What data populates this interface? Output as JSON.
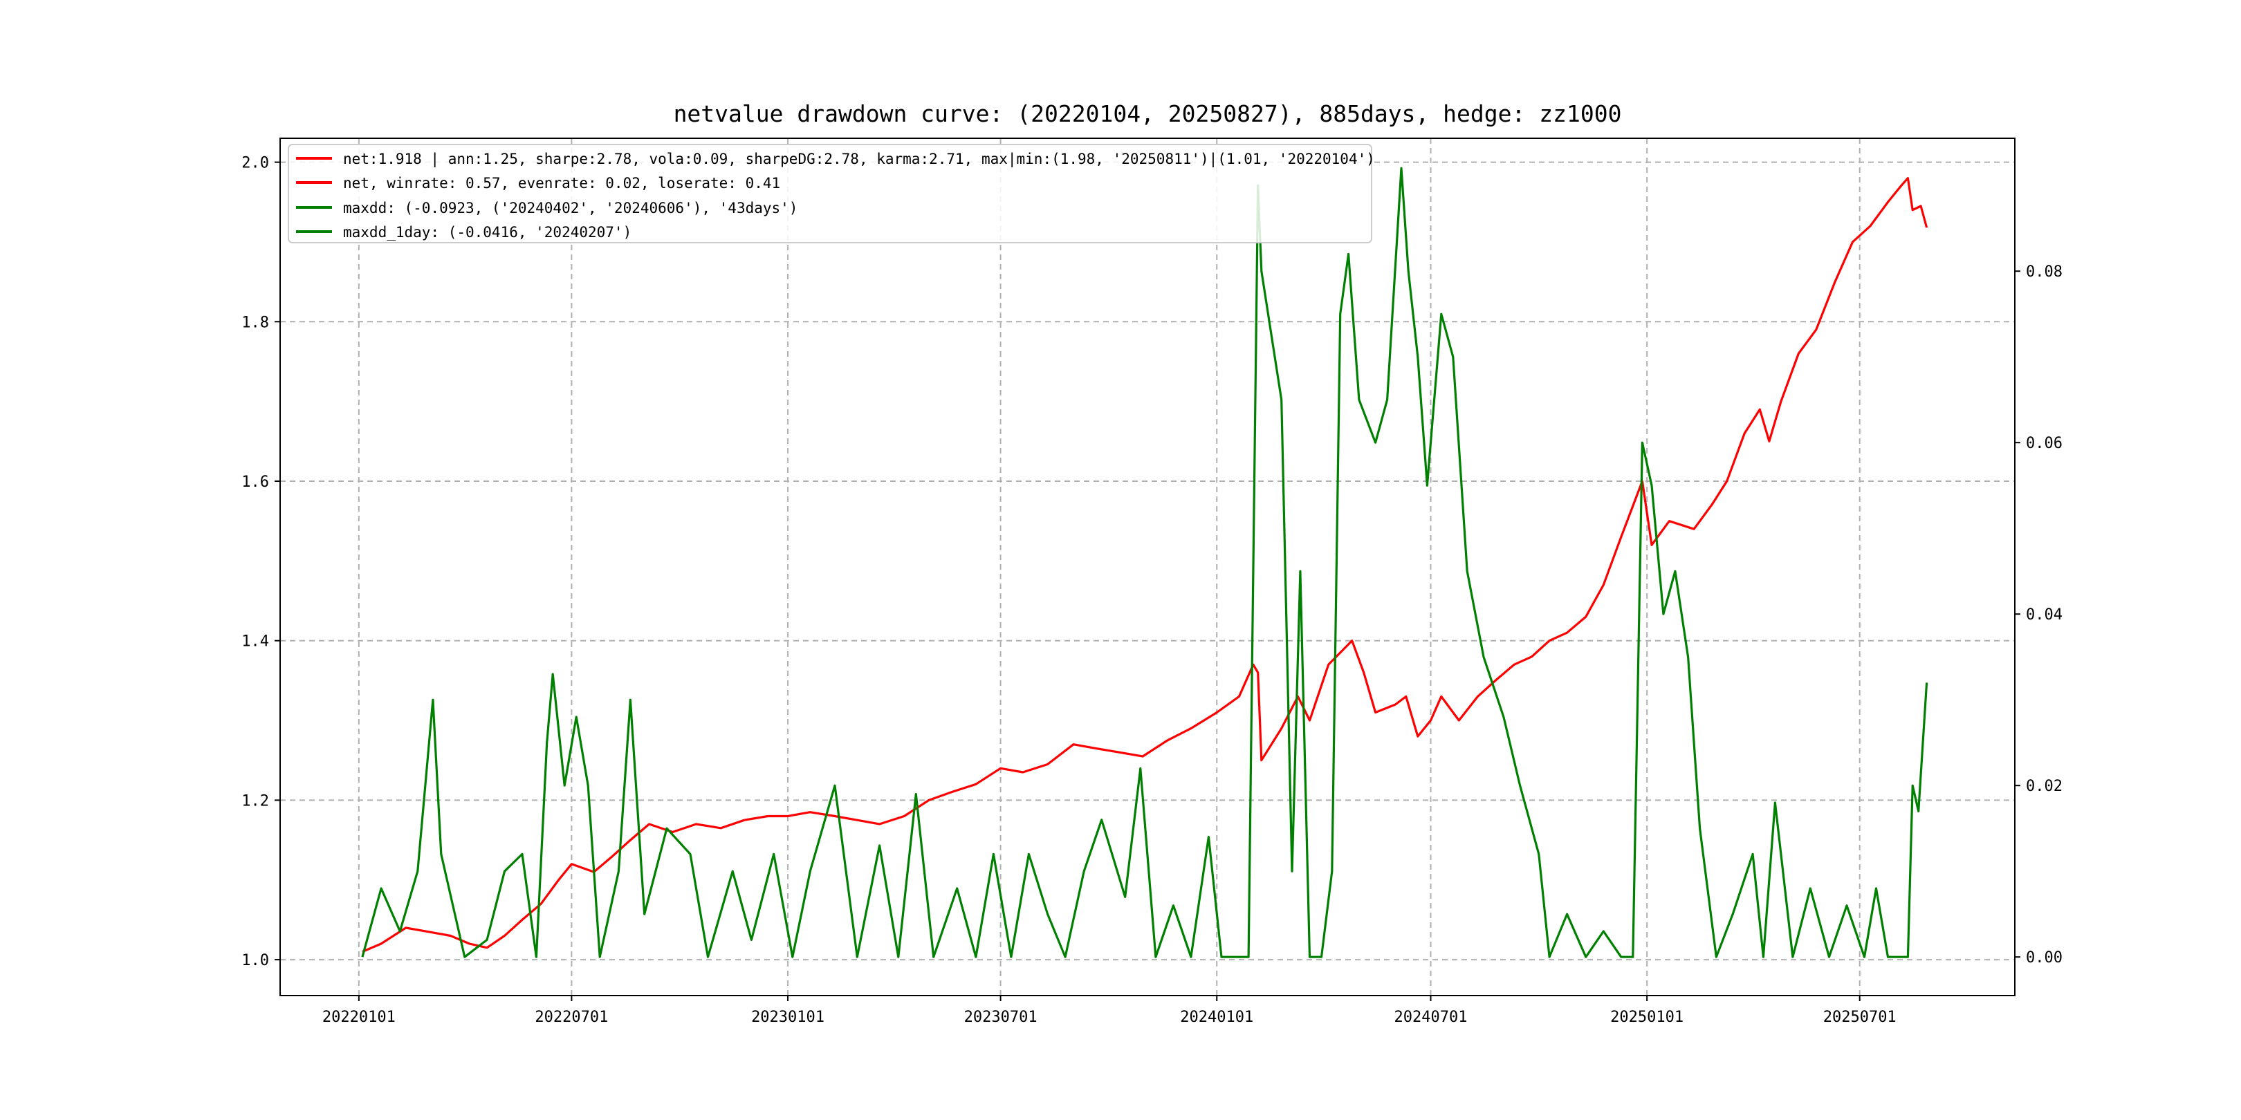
{
  "chart_data": {
    "type": "line",
    "title": "netvalue drawdown curve: (20220104, 20250827), 885days, hedge: zz1000",
    "xlabel": "",
    "ylabel_left": "",
    "ylabel_right": "",
    "grid": true,
    "legend_position": "top-left",
    "x_ticks": [
      "20220101",
      "20220701",
      "20230101",
      "20230701",
      "20240101",
      "20240701",
      "20250101",
      "20250701"
    ],
    "x_tick_dates": [
      "2022-01-01",
      "2022-07-01",
      "2023-01-01",
      "2023-07-01",
      "2024-01-01",
      "2024-07-01",
      "2025-01-01",
      "2025-07-01"
    ],
    "y_left_ticks": [
      "1.0",
      "1.2",
      "1.4",
      "1.6",
      "1.8",
      "2.0"
    ],
    "y_left_tick_values": [
      1.0,
      1.2,
      1.4,
      1.6,
      1.8,
      2.0
    ],
    "y_left_lim": [
      0.955,
      2.03
    ],
    "y_right_ticks": [
      "0.00",
      "0.02",
      "0.04",
      "0.06",
      "0.08"
    ],
    "y_right_tick_values": [
      0,
      0.02,
      0.04,
      0.06,
      0.08
    ],
    "y_right_lim": [
      -0.0045,
      0.0955
    ],
    "x_lim": [
      "2021-10-26",
      "2025-11-10"
    ],
    "legend": [
      {
        "label": "net:1.918 | ann:1.25, sharpe:2.78, vola:0.09, sharpeDG:2.78, karma:2.71, max|min:(1.98, '20250811')|(1.01, '20220104')",
        "color": "#ff0000"
      },
      {
        "label": "net, winrate: 0.57, evenrate: 0.02, loserate: 0.41",
        "color": "#ff0000"
      },
      {
        "label": "maxdd: (-0.0923, ('20240402', '20240606'), '43days')",
        "color": "#008000"
      },
      {
        "label": "maxdd_1day: (-0.0416, '20240207')",
        "color": "#008000"
      }
    ],
    "series": [
      {
        "name": "net",
        "axis": "left",
        "color": "#ff0000",
        "points": [
          [
            "2022-01-04",
            1.01
          ],
          [
            "2022-01-20",
            1.02
          ],
          [
            "2022-02-10",
            1.04
          ],
          [
            "2022-03-01",
            1.035
          ],
          [
            "2022-03-20",
            1.03
          ],
          [
            "2022-04-05",
            1.02
          ],
          [
            "2022-04-20",
            1.015
          ],
          [
            "2022-05-05",
            1.03
          ],
          [
            "2022-05-20",
            1.05
          ],
          [
            "2022-06-05",
            1.07
          ],
          [
            "2022-06-20",
            1.1
          ],
          [
            "2022-07-01",
            1.12
          ],
          [
            "2022-07-20",
            1.11
          ],
          [
            "2022-08-05",
            1.13
          ],
          [
            "2022-08-20",
            1.15
          ],
          [
            "2022-09-05",
            1.17
          ],
          [
            "2022-09-25",
            1.16
          ],
          [
            "2022-10-15",
            1.17
          ],
          [
            "2022-11-05",
            1.165
          ],
          [
            "2022-11-25",
            1.175
          ],
          [
            "2022-12-15",
            1.18
          ],
          [
            "2023-01-01",
            1.18
          ],
          [
            "2023-01-20",
            1.185
          ],
          [
            "2023-02-10",
            1.18
          ],
          [
            "2023-03-01",
            1.175
          ],
          [
            "2023-03-20",
            1.17
          ],
          [
            "2023-04-10",
            1.18
          ],
          [
            "2023-05-01",
            1.2
          ],
          [
            "2023-05-20",
            1.21
          ],
          [
            "2023-06-10",
            1.22
          ],
          [
            "2023-07-01",
            1.24
          ],
          [
            "2023-07-20",
            1.235
          ],
          [
            "2023-08-10",
            1.245
          ],
          [
            "2023-09-01",
            1.27
          ],
          [
            "2023-09-20",
            1.265
          ],
          [
            "2023-10-10",
            1.26
          ],
          [
            "2023-10-30",
            1.255
          ],
          [
            "2023-11-20",
            1.275
          ],
          [
            "2023-12-10",
            1.29
          ],
          [
            "2024-01-01",
            1.31
          ],
          [
            "2024-01-20",
            1.33
          ],
          [
            "2024-02-01",
            1.37
          ],
          [
            "2024-02-05",
            1.36
          ],
          [
            "2024-02-08",
            1.25
          ],
          [
            "2024-02-25",
            1.29
          ],
          [
            "2024-03-10",
            1.33
          ],
          [
            "2024-03-20",
            1.3
          ],
          [
            "2024-04-05",
            1.37
          ],
          [
            "2024-04-25",
            1.4
          ],
          [
            "2024-05-05",
            1.36
          ],
          [
            "2024-05-15",
            1.31
          ],
          [
            "2024-06-01",
            1.32
          ],
          [
            "2024-06-10",
            1.33
          ],
          [
            "2024-06-20",
            1.28
          ],
          [
            "2024-07-01",
            1.3
          ],
          [
            "2024-07-10",
            1.33
          ],
          [
            "2024-07-25",
            1.3
          ],
          [
            "2024-08-10",
            1.33
          ],
          [
            "2024-08-25",
            1.35
          ],
          [
            "2024-09-10",
            1.37
          ],
          [
            "2024-09-25",
            1.38
          ],
          [
            "2024-10-10",
            1.4
          ],
          [
            "2024-10-25",
            1.41
          ],
          [
            "2024-11-10",
            1.43
          ],
          [
            "2024-11-25",
            1.47
          ],
          [
            "2024-12-10",
            1.53
          ],
          [
            "2024-12-28",
            1.6
          ],
          [
            "2025-01-05",
            1.52
          ],
          [
            "2025-01-20",
            1.55
          ],
          [
            "2025-02-10",
            1.54
          ],
          [
            "2025-02-25",
            1.57
          ],
          [
            "2025-03-10",
            1.6
          ],
          [
            "2025-03-25",
            1.66
          ],
          [
            "2025-04-07",
            1.69
          ],
          [
            "2025-04-15",
            1.65
          ],
          [
            "2025-04-25",
            1.7
          ],
          [
            "2025-05-10",
            1.76
          ],
          [
            "2025-05-25",
            1.79
          ],
          [
            "2025-06-10",
            1.85
          ],
          [
            "2025-06-25",
            1.9
          ],
          [
            "2025-07-10",
            1.92
          ],
          [
            "2025-07-25",
            1.95
          ],
          [
            "2025-08-05",
            1.97
          ],
          [
            "2025-08-11",
            1.98
          ],
          [
            "2025-08-15",
            1.94
          ],
          [
            "2025-08-22",
            1.945
          ],
          [
            "2025-08-27",
            1.918
          ]
        ]
      },
      {
        "name": "maxdd",
        "axis": "right",
        "color": "#008000",
        "points": [
          [
            "2022-01-04",
            0
          ],
          [
            "2022-01-20",
            0.008
          ],
          [
            "2022-02-05",
            0.003
          ],
          [
            "2022-02-20",
            0.01
          ],
          [
            "2022-03-05",
            0.03
          ],
          [
            "2022-03-12",
            0.012
          ],
          [
            "2022-04-01",
            0
          ],
          [
            "2022-04-20",
            0.002
          ],
          [
            "2022-05-05",
            0.01
          ],
          [
            "2022-05-20",
            0.012
          ],
          [
            "2022-06-01",
            0
          ],
          [
            "2022-06-10",
            0.025
          ],
          [
            "2022-06-15",
            0.033
          ],
          [
            "2022-06-25",
            0.02
          ],
          [
            "2022-07-05",
            0.028
          ],
          [
            "2022-07-15",
            0.02
          ],
          [
            "2022-07-25",
            0
          ],
          [
            "2022-08-10",
            0.01
          ],
          [
            "2022-08-20",
            0.03
          ],
          [
            "2022-09-01",
            0.005
          ],
          [
            "2022-09-20",
            0.015
          ],
          [
            "2022-10-10",
            0.012
          ],
          [
            "2022-10-25",
            0
          ],
          [
            "2022-11-15",
            0.01
          ],
          [
            "2022-12-01",
            0.002
          ],
          [
            "2022-12-20",
            0.012
          ],
          [
            "2023-01-05",
            0
          ],
          [
            "2023-01-20",
            0.01
          ],
          [
            "2023-02-10",
            0.02
          ],
          [
            "2023-03-01",
            0
          ],
          [
            "2023-03-20",
            0.013
          ],
          [
            "2023-04-05",
            0
          ],
          [
            "2023-04-20",
            0.019
          ],
          [
            "2023-05-05",
            0
          ],
          [
            "2023-05-25",
            0.008
          ],
          [
            "2023-06-10",
            0
          ],
          [
            "2023-06-25",
            0.012
          ],
          [
            "2023-07-10",
            0
          ],
          [
            "2023-07-25",
            0.012
          ],
          [
            "2023-08-10",
            0.005
          ],
          [
            "2023-08-25",
            0
          ],
          [
            "2023-09-10",
            0.01
          ],
          [
            "2023-09-25",
            0.016
          ],
          [
            "2023-10-15",
            0.007
          ],
          [
            "2023-10-28",
            0.022
          ],
          [
            "2023-11-10",
            0
          ],
          [
            "2023-11-25",
            0.006
          ],
          [
            "2023-12-10",
            0
          ],
          [
            "2023-12-25",
            0.014
          ],
          [
            "2024-01-05",
            0
          ],
          [
            "2024-01-28",
            0
          ],
          [
            "2024-02-05",
            0.09
          ],
          [
            "2024-02-08",
            0.08
          ],
          [
            "2024-02-25",
            0.065
          ],
          [
            "2024-03-05",
            0.01
          ],
          [
            "2024-03-12",
            0.045
          ],
          [
            "2024-03-20",
            0
          ],
          [
            "2024-03-30",
            0
          ],
          [
            "2024-04-08",
            0.01
          ],
          [
            "2024-04-15",
            0.075
          ],
          [
            "2024-04-22",
            0.082
          ],
          [
            "2024-05-01",
            0.065
          ],
          [
            "2024-05-15",
            0.06
          ],
          [
            "2024-05-25",
            0.065
          ],
          [
            "2024-06-06",
            0.092
          ],
          [
            "2024-06-12",
            0.08
          ],
          [
            "2024-06-20",
            0.07
          ],
          [
            "2024-06-28",
            0.055
          ],
          [
            "2024-07-10",
            0.075
          ],
          [
            "2024-07-20",
            0.07
          ],
          [
            "2024-08-01",
            0.045
          ],
          [
            "2024-08-15",
            0.035
          ],
          [
            "2024-09-01",
            0.028
          ],
          [
            "2024-09-15",
            0.02
          ],
          [
            "2024-10-01",
            0.012
          ],
          [
            "2024-10-10",
            0
          ],
          [
            "2024-10-25",
            0.005
          ],
          [
            "2024-11-10",
            0
          ],
          [
            "2024-11-25",
            0.003
          ],
          [
            "2024-12-10",
            0
          ],
          [
            "2024-12-20",
            0
          ],
          [
            "2024-12-28",
            0.06
          ],
          [
            "2025-01-05",
            0.055
          ],
          [
            "2025-01-15",
            0.04
          ],
          [
            "2025-01-25",
            0.045
          ],
          [
            "2025-02-05",
            0.035
          ],
          [
            "2025-02-15",
            0.015
          ],
          [
            "2025-03-01",
            0
          ],
          [
            "2025-03-15",
            0.005
          ],
          [
            "2025-04-01",
            0.012
          ],
          [
            "2025-04-10",
            0
          ],
          [
            "2025-04-20",
            0.018
          ],
          [
            "2025-05-05",
            0
          ],
          [
            "2025-05-20",
            0.008
          ],
          [
            "2025-06-05",
            0
          ],
          [
            "2025-06-20",
            0.006
          ],
          [
            "2025-07-05",
            0
          ],
          [
            "2025-07-15",
            0.008
          ],
          [
            "2025-07-25",
            0
          ],
          [
            "2025-08-11",
            0
          ],
          [
            "2025-08-15",
            0.02
          ],
          [
            "2025-08-20",
            0.017
          ],
          [
            "2025-08-27",
            0.032
          ]
        ]
      }
    ]
  }
}
